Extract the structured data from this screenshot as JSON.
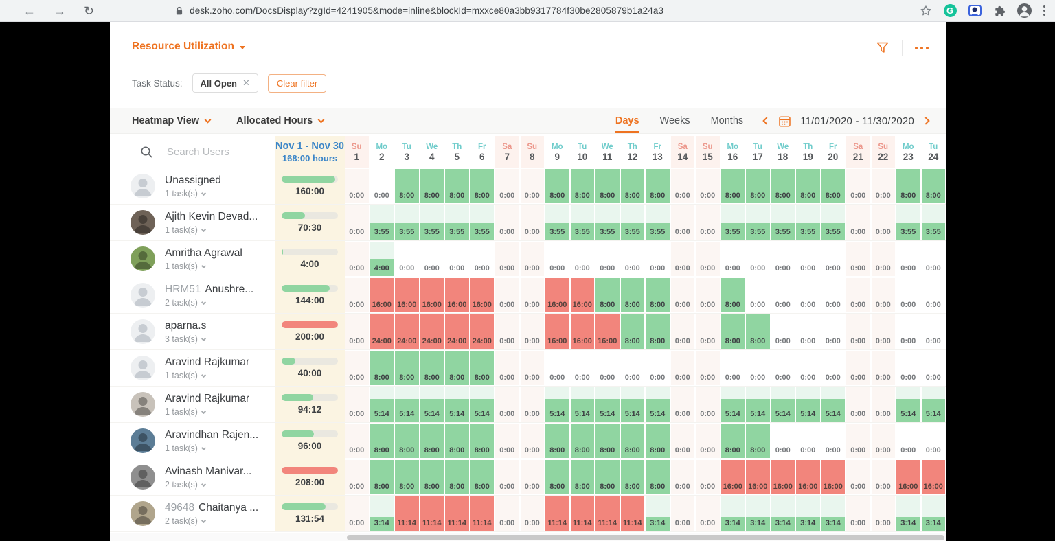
{
  "colors": {
    "accent": "#ee7321",
    "green": "#90d5a1",
    "light_green": "#e9f6ee",
    "red": "#f2857c",
    "weekend_tint": "#fcf6f3",
    "summary_bg": "#fbf4e2",
    "blue": "#3c86c8",
    "teal": "#6fcccb",
    "salmon": "#ec968a"
  },
  "browser": {
    "url": "desk.zoho.com/DocsDisplay?zgId=4241905&mode=inline&blockId=mxxce80a3bb9317784f30be2805879b1a24a3"
  },
  "header": {
    "title": "Resource Utilization"
  },
  "filters": {
    "label": "Task Status:",
    "chip": "All Open",
    "clear": "Clear filter"
  },
  "toolbar": {
    "view": "Heatmap View",
    "metric": "Allocated Hours",
    "tabs": [
      "Days",
      "Weeks",
      "Months"
    ],
    "active_tab": "Days",
    "date_range": "11/01/2020  -  11/30/2020"
  },
  "search": {
    "placeholder": "Search Users"
  },
  "summary_header": {
    "range": "Nov 1 - Nov 30",
    "hours": "168:00 hours"
  },
  "columns": [
    {
      "dow": "Su",
      "day": "1",
      "weekend": true
    },
    {
      "dow": "Mo",
      "day": "2",
      "weekend": false
    },
    {
      "dow": "Tu",
      "day": "3",
      "weekend": false
    },
    {
      "dow": "We",
      "day": "4",
      "weekend": false
    },
    {
      "dow": "Th",
      "day": "5",
      "weekend": false
    },
    {
      "dow": "Fr",
      "day": "6",
      "weekend": false
    },
    {
      "dow": "Sa",
      "day": "7",
      "weekend": true
    },
    {
      "dow": "Su",
      "day": "8",
      "weekend": true
    },
    {
      "dow": "Mo",
      "day": "9",
      "weekend": false
    },
    {
      "dow": "Tu",
      "day": "10",
      "weekend": false
    },
    {
      "dow": "We",
      "day": "11",
      "weekend": false
    },
    {
      "dow": "Th",
      "day": "12",
      "weekend": false
    },
    {
      "dow": "Fr",
      "day": "13",
      "weekend": false
    },
    {
      "dow": "Sa",
      "day": "14",
      "weekend": true
    },
    {
      "dow": "Su",
      "day": "15",
      "weekend": true
    },
    {
      "dow": "Mo",
      "day": "16",
      "weekend": false
    },
    {
      "dow": "Tu",
      "day": "17",
      "weekend": false
    },
    {
      "dow": "We",
      "day": "18",
      "weekend": false
    },
    {
      "dow": "Th",
      "day": "19",
      "weekend": false
    },
    {
      "dow": "Fr",
      "day": "20",
      "weekend": false
    },
    {
      "dow": "Sa",
      "day": "21",
      "weekend": true
    },
    {
      "dow": "Su",
      "day": "22",
      "weekend": true
    },
    {
      "dow": "Mo",
      "day": "23",
      "weekend": false
    },
    {
      "dow": "Tu",
      "day": "24",
      "weekend": false
    }
  ],
  "rows": [
    {
      "prefix": "",
      "name": "Unassigned",
      "tasks": "1 task(s)",
      "total": "160:00",
      "avatar": "placeholder",
      "values": [
        "0:00",
        "0:00",
        "8:00",
        "8:00",
        "8:00",
        "8:00",
        "0:00",
        "0:00",
        "8:00",
        "8:00",
        "8:00",
        "8:00",
        "8:00",
        "0:00",
        "0:00",
        "8:00",
        "8:00",
        "8:00",
        "8:00",
        "8:00",
        "0:00",
        "0:00",
        "8:00",
        "8:00"
      ]
    },
    {
      "prefix": "",
      "name": "Ajith Kevin Devad...",
      "tasks": "1 task(s)",
      "total": "70:30",
      "avatar": "#6e6257",
      "values": [
        "0:00",
        "3:55",
        "3:55",
        "3:55",
        "3:55",
        "3:55",
        "0:00",
        "0:00",
        "3:55",
        "3:55",
        "3:55",
        "3:55",
        "3:55",
        "0:00",
        "0:00",
        "3:55",
        "3:55",
        "3:55",
        "3:55",
        "3:55",
        "0:00",
        "0:00",
        "3:55",
        "3:55"
      ]
    },
    {
      "prefix": "",
      "name": "Amritha Agrawal",
      "tasks": "1 task(s)",
      "total": "4:00",
      "avatar": "#7fa05a",
      "values": [
        "0:00",
        "4:00",
        "0:00",
        "0:00",
        "0:00",
        "0:00",
        "0:00",
        "0:00",
        "0:00",
        "0:00",
        "0:00",
        "0:00",
        "0:00",
        "0:00",
        "0:00",
        "0:00",
        "0:00",
        "0:00",
        "0:00",
        "0:00",
        "0:00",
        "0:00",
        "0:00",
        "0:00"
      ]
    },
    {
      "prefix": "HRM51",
      "name": "Anushre...",
      "tasks": "2 task(s)",
      "total": "144:00",
      "avatar": "placeholder",
      "values": [
        "0:00",
        "16:00",
        "16:00",
        "16:00",
        "16:00",
        "16:00",
        "0:00",
        "0:00",
        "16:00",
        "16:00",
        "8:00",
        "8:00",
        "8:00",
        "0:00",
        "0:00",
        "8:00",
        "0:00",
        "0:00",
        "0:00",
        "0:00",
        "0:00",
        "0:00",
        "0:00",
        "0:00"
      ]
    },
    {
      "prefix": "",
      "name": "aparna.s",
      "tasks": "3 task(s)",
      "total": "200:00",
      "avatar": "placeholder",
      "values": [
        "0:00",
        "24:00",
        "24:00",
        "24:00",
        "24:00",
        "24:00",
        "0:00",
        "0:00",
        "16:00",
        "16:00",
        "16:00",
        "8:00",
        "8:00",
        "0:00",
        "0:00",
        "8:00",
        "8:00",
        "0:00",
        "0:00",
        "0:00",
        "0:00",
        "0:00",
        "0:00",
        "0:00"
      ]
    },
    {
      "prefix": "",
      "name": "Aravind Rajkumar",
      "tasks": "1 task(s)",
      "total": "40:00",
      "avatar": "placeholder",
      "values": [
        "0:00",
        "8:00",
        "8:00",
        "8:00",
        "8:00",
        "8:00",
        "0:00",
        "0:00",
        "0:00",
        "0:00",
        "0:00",
        "0:00",
        "0:00",
        "0:00",
        "0:00",
        "0:00",
        "0:00",
        "0:00",
        "0:00",
        "0:00",
        "0:00",
        "0:00",
        "0:00",
        "0:00"
      ]
    },
    {
      "prefix": "",
      "name": "Aravind Rajkumar",
      "tasks": "1 task(s)",
      "total": "94:12",
      "avatar": "#c8c2ba",
      "values": [
        "0:00",
        "5:14",
        "5:14",
        "5:14",
        "5:14",
        "5:14",
        "0:00",
        "0:00",
        "5:14",
        "5:14",
        "5:14",
        "5:14",
        "5:14",
        "0:00",
        "0:00",
        "5:14",
        "5:14",
        "5:14",
        "5:14",
        "5:14",
        "0:00",
        "0:00",
        "5:14",
        "5:14"
      ]
    },
    {
      "prefix": "",
      "name": "Aravindhan Rajen...",
      "tasks": "1 task(s)",
      "total": "96:00",
      "avatar": "#5c7d96",
      "values": [
        "0:00",
        "8:00",
        "8:00",
        "8:00",
        "8:00",
        "8:00",
        "0:00",
        "0:00",
        "8:00",
        "8:00",
        "8:00",
        "8:00",
        "8:00",
        "0:00",
        "0:00",
        "8:00",
        "8:00",
        "0:00",
        "0:00",
        "0:00",
        "0:00",
        "0:00",
        "0:00",
        "0:00"
      ]
    },
    {
      "prefix": "",
      "name": "Avinash Manivar...",
      "tasks": "2 task(s)",
      "total": "208:00",
      "avatar": "#8f8f8f",
      "values": [
        "0:00",
        "8:00",
        "8:00",
        "8:00",
        "8:00",
        "8:00",
        "0:00",
        "0:00",
        "8:00",
        "8:00",
        "8:00",
        "8:00",
        "8:00",
        "0:00",
        "0:00",
        "16:00",
        "16:00",
        "16:00",
        "16:00",
        "16:00",
        "0:00",
        "0:00",
        "16:00",
        "16:00"
      ]
    },
    {
      "prefix": "49648",
      "name": "Chaitanya ...",
      "tasks": "2 task(s)",
      "total": "131:54",
      "avatar": "#b0a58c",
      "values": [
        "0:00",
        "3:14",
        "11:14",
        "11:14",
        "11:14",
        "11:14",
        "0:00",
        "0:00",
        "11:14",
        "11:14",
        "11:14",
        "11:14",
        "3:14",
        "0:00",
        "0:00",
        "3:14",
        "3:14",
        "3:14",
        "3:14",
        "3:14",
        "0:00",
        "0:00",
        "3:14",
        "3:14"
      ]
    }
  ]
}
